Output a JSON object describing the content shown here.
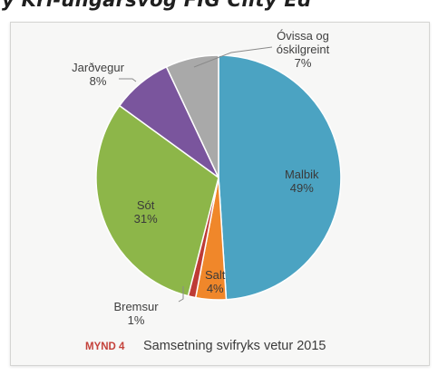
{
  "header_fragment": "y Kri-ungarsvog FIG Clity Ed",
  "chart_data": {
    "type": "pie",
    "slices": [
      {
        "label": "Malbik",
        "value": 49,
        "pct_text": "49%",
        "color": "#4ba3c2"
      },
      {
        "label": "Salt",
        "value": 4,
        "pct_text": "4%",
        "color": "#f0872a"
      },
      {
        "label": "Bremsur",
        "value": 1,
        "pct_text": "1%",
        "color": "#be3b35"
      },
      {
        "label": "Sót",
        "value": 31,
        "pct_text": "31%",
        "color": "#8db649"
      },
      {
        "label": "Jarðvegur",
        "value": 8,
        "pct_text": "8%",
        "color": "#7a559d"
      },
      {
        "label": "Óvissa og óskilgreint",
        "label_lines": [
          "Óvissa og",
          "óskilgreint"
        ],
        "value": 7,
        "pct_text": "7%",
        "color": "#a9a9a9"
      }
    ],
    "start_angle_deg": 0,
    "direction": "clockwise"
  },
  "caption": {
    "number": "MYND 4",
    "text": "Samsetning svifryks vetur 2015"
  }
}
